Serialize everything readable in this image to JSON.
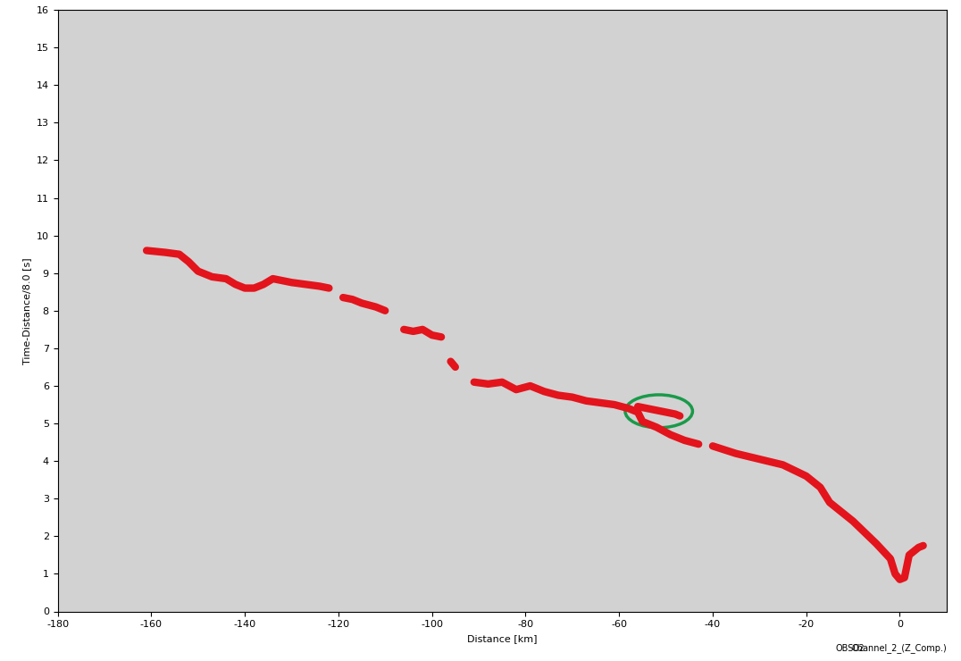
{
  "chart_data": {
    "type": "line",
    "x_label": "Distance [km]",
    "y_label": "Time-Distance/8.0 [s]",
    "annotations": [
      "OBS02",
      "Channel_2_(Z_Comp.)"
    ],
    "xlim": [
      -180,
      10
    ],
    "xticks": [
      -180,
      -160,
      -140,
      -120,
      -100,
      -80,
      -60,
      -40,
      -20,
      0
    ],
    "ylim": [
      0,
      16
    ],
    "yticks": [
      0,
      1,
      2,
      3,
      4,
      5,
      6,
      7,
      8,
      9,
      10,
      11,
      12,
      13,
      14,
      15,
      16
    ],
    "grid": false,
    "series": [
      {
        "color": "#e3141c",
        "line_style": "solid",
        "x": [
          -161,
          -157,
          -154,
          -152,
          -150,
          -147,
          -144,
          -142,
          -140,
          -138,
          -136,
          -134,
          -132,
          -130,
          -127,
          -124,
          -122,
          -121,
          -119,
          -117,
          -115,
          -112,
          -110,
          -109,
          -106,
          -104,
          -102,
          -100,
          -98,
          -97,
          -96,
          -95,
          -94,
          -91,
          -88,
          -85,
          -82,
          -79,
          -76,
          -73,
          -70,
          -67,
          -64,
          -61,
          -58,
          -56,
          -55,
          -52,
          -49,
          -46,
          -43,
          -42,
          -40,
          -35,
          -30,
          -25,
          -20,
          -17,
          -15,
          -10,
          -5,
          -2,
          -1,
          0,
          1,
          2,
          4,
          5
        ],
        "values": [
          9.6,
          9.55,
          9.5,
          9.3,
          9.05,
          8.9,
          8.85,
          8.7,
          8.6,
          8.6,
          8.7,
          8.85,
          8.8,
          8.75,
          8.7,
          8.65,
          8.6,
          null,
          8.35,
          8.3,
          8.2,
          8.1,
          8.0,
          null,
          7.5,
          7.45,
          7.5,
          7.35,
          7.3,
          null,
          6.65,
          6.5,
          null,
          6.1,
          6.05,
          6.1,
          5.9,
          6.0,
          5.85,
          5.75,
          5.7,
          5.6,
          5.55,
          5.5,
          5.4,
          5.3,
          5.05,
          4.9,
          4.7,
          4.55,
          4.45,
          null,
          4.4,
          4.2,
          4.05,
          3.9,
          3.6,
          3.3,
          2.9,
          2.4,
          1.8,
          1.4,
          1.0,
          0.85,
          0.9,
          1.5,
          1.7,
          1.75
        ]
      },
      {
        "color": "#e3141c",
        "line_style": "solid",
        "x": [
          -56,
          -54,
          -52,
          -50,
          -48,
          -47
        ],
        "values": [
          5.45,
          5.4,
          5.35,
          5.3,
          5.25,
          5.2
        ]
      }
    ]
  }
}
